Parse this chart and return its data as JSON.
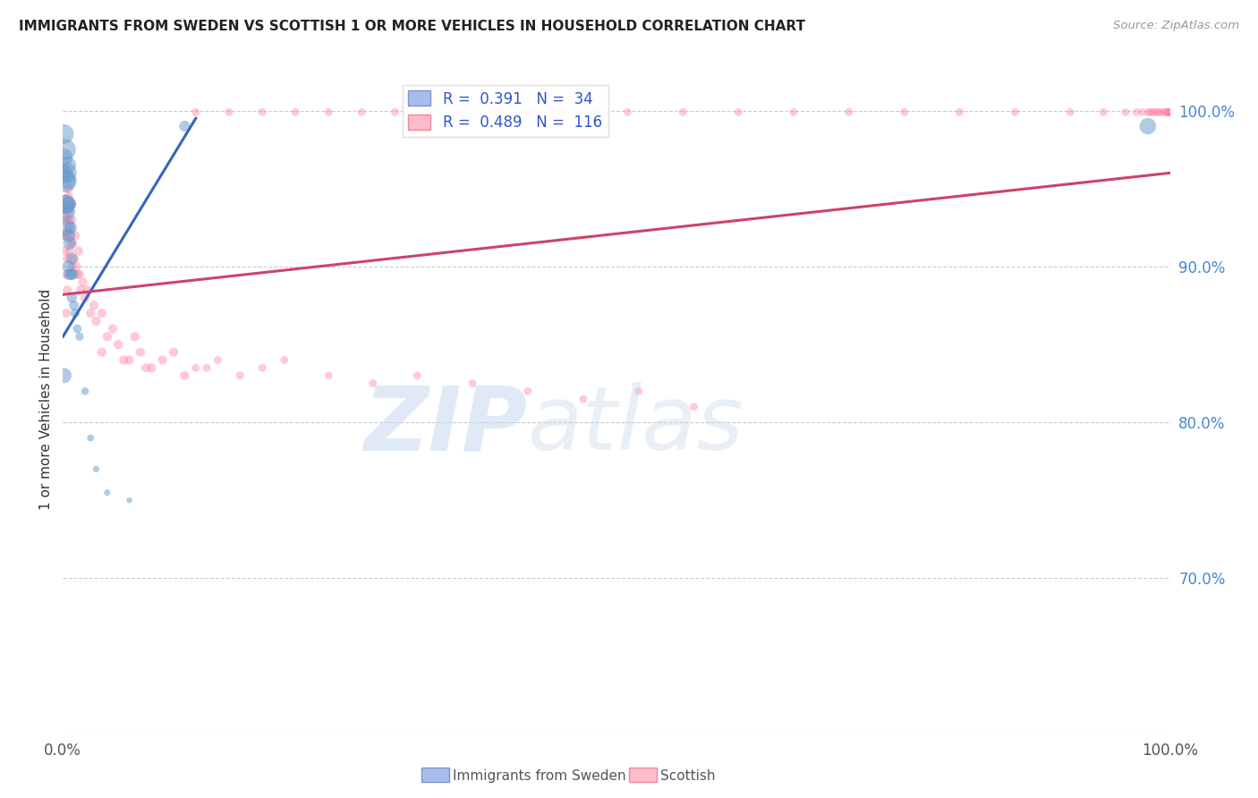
{
  "title": "IMMIGRANTS FROM SWEDEN VS SCOTTISH 1 OR MORE VEHICLES IN HOUSEHOLD CORRELATION CHART",
  "source": "Source: ZipAtlas.com",
  "ylabel": "1 or more Vehicles in Household",
  "xlim": [
    0.0,
    1.0
  ],
  "ylim": [
    0.6,
    1.03
  ],
  "yticks": [
    0.7,
    0.8,
    0.9,
    1.0
  ],
  "ytick_labels": [
    "70.0%",
    "80.0%",
    "90.0%",
    "100.0%"
  ],
  "xtick_labels": [
    "0.0%",
    "100.0%"
  ],
  "xticks": [
    0.0,
    1.0
  ],
  "legend_r_blue": "0.391",
  "legend_n_blue": "34",
  "legend_r_pink": "0.489",
  "legend_n_pink": "116",
  "legend_label_blue": "Immigrants from Sweden",
  "legend_label_pink": "Scottish",
  "blue_color": "#6699cc",
  "pink_color": "#ff88aa",
  "watermark_zip": "ZIP",
  "watermark_atlas": "atlas",
  "blue_trendline_x": [
    0.0,
    0.12
  ],
  "blue_trendline_y": [
    0.855,
    0.995
  ],
  "pink_trendline_x": [
    0.0,
    1.0
  ],
  "pink_trendline_y": [
    0.882,
    0.96
  ],
  "blue_x": [
    0.001,
    0.001,
    0.001,
    0.002,
    0.002,
    0.002,
    0.003,
    0.003,
    0.003,
    0.004,
    0.004,
    0.004,
    0.005,
    0.005,
    0.005,
    0.006,
    0.006,
    0.007,
    0.007,
    0.008,
    0.008,
    0.009,
    0.01,
    0.011,
    0.013,
    0.015,
    0.02,
    0.025,
    0.03,
    0.04,
    0.06,
    0.11,
    0.001,
    0.98
  ],
  "blue_y": [
    0.97,
    0.96,
    0.985,
    0.975,
    0.955,
    0.94,
    0.96,
    0.94,
    0.925,
    0.955,
    0.935,
    0.965,
    0.94,
    0.92,
    0.9,
    0.915,
    0.895,
    0.925,
    0.895,
    0.905,
    0.88,
    0.895,
    0.875,
    0.87,
    0.86,
    0.855,
    0.82,
    0.79,
    0.77,
    0.755,
    0.75,
    0.99,
    0.83,
    0.99
  ],
  "blue_s": [
    200,
    180,
    250,
    300,
    350,
    220,
    280,
    240,
    200,
    180,
    160,
    200,
    140,
    120,
    100,
    110,
    90,
    100,
    80,
    90,
    70,
    80,
    65,
    55,
    50,
    45,
    38,
    32,
    28,
    25,
    22,
    80,
    150,
    180
  ],
  "pink_x": [
    0.001,
    0.002,
    0.002,
    0.003,
    0.003,
    0.004,
    0.004,
    0.005,
    0.005,
    0.006,
    0.006,
    0.007,
    0.007,
    0.008,
    0.008,
    0.009,
    0.01,
    0.011,
    0.012,
    0.013,
    0.014,
    0.015,
    0.016,
    0.018,
    0.02,
    0.022,
    0.025,
    0.028,
    0.03,
    0.035,
    0.04,
    0.045,
    0.05,
    0.06,
    0.065,
    0.07,
    0.08,
    0.09,
    0.1,
    0.12,
    0.14,
    0.16,
    0.18,
    0.2,
    0.24,
    0.28,
    0.32,
    0.37,
    0.42,
    0.47,
    0.52,
    0.57,
    0.003,
    0.004,
    0.005,
    0.006,
    0.007,
    0.008,
    0.003,
    0.004,
    0.035,
    0.055,
    0.075,
    0.11,
    0.13,
    0.12,
    0.15,
    0.18,
    0.21,
    0.24,
    0.27,
    0.3,
    0.33,
    0.36,
    0.39,
    0.42,
    0.45,
    0.48,
    0.51,
    0.56,
    0.61,
    0.66,
    0.71,
    0.76,
    0.81,
    0.86,
    0.91,
    0.94,
    0.96,
    0.97,
    0.975,
    0.98,
    0.982,
    0.984,
    0.986,
    0.988,
    0.99,
    0.992,
    0.994,
    0.996,
    0.998,
    0.999,
    0.999,
    0.999,
    0.999,
    0.999,
    0.999,
    0.999,
    0.999,
    0.999,
    0.999,
    0.999,
    0.999,
    0.999,
    0.999,
    0.999,
    0.999,
    0.999,
    0.999,
    0.999,
    0.999
  ],
  "pink_y": [
    0.92,
    0.93,
    0.91,
    0.94,
    0.92,
    0.905,
    0.935,
    0.925,
    0.945,
    0.91,
    0.935,
    0.915,
    0.94,
    0.9,
    0.93,
    0.915,
    0.905,
    0.92,
    0.9,
    0.895,
    0.91,
    0.895,
    0.885,
    0.89,
    0.88,
    0.885,
    0.87,
    0.875,
    0.865,
    0.87,
    0.855,
    0.86,
    0.85,
    0.84,
    0.855,
    0.845,
    0.835,
    0.84,
    0.845,
    0.835,
    0.84,
    0.83,
    0.835,
    0.84,
    0.83,
    0.825,
    0.83,
    0.825,
    0.82,
    0.815,
    0.82,
    0.81,
    0.895,
    0.93,
    0.95,
    0.93,
    0.92,
    0.94,
    0.87,
    0.885,
    0.845,
    0.84,
    0.835,
    0.83,
    0.835,
    0.999,
    0.999,
    0.999,
    0.999,
    0.999,
    0.999,
    0.999,
    0.999,
    0.999,
    0.999,
    0.999,
    0.999,
    0.999,
    0.999,
    0.999,
    0.999,
    0.999,
    0.999,
    0.999,
    0.999,
    0.999,
    0.999,
    0.999,
    0.999,
    0.999,
    0.999,
    0.999,
    0.999,
    0.999,
    0.999,
    0.999,
    0.999,
    0.999,
    0.999,
    0.999,
    0.999,
    0.999,
    0.999,
    0.999,
    0.999,
    0.999,
    0.999,
    0.999,
    0.999,
    0.999,
    0.999,
    0.999,
    0.999,
    0.999,
    0.999,
    0.999,
    0.999,
    0.999,
    0.999,
    0.999,
    0.999
  ],
  "pink_s_base": 55
}
